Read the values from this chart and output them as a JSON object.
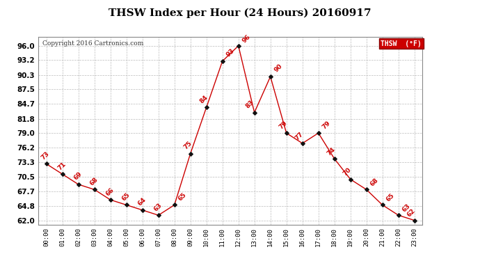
{
  "title": "THSW Index per Hour (24 Hours) 20160917",
  "copyright": "Copyright 2016 Cartronics.com",
  "legend_label": "THSW  (°F)",
  "hours": [
    0,
    1,
    2,
    3,
    4,
    5,
    6,
    7,
    8,
    9,
    10,
    11,
    12,
    13,
    14,
    15,
    16,
    17,
    18,
    19,
    20,
    21,
    22,
    23
  ],
  "values": [
    73,
    71,
    69,
    68,
    66,
    65,
    64,
    63,
    65,
    75,
    84,
    93,
    96,
    83,
    90,
    79,
    77,
    79,
    74,
    70,
    68,
    65,
    63,
    62
  ],
  "x_labels": [
    "00:00",
    "01:00",
    "02:00",
    "03:00",
    "04:00",
    "05:00",
    "06:00",
    "07:00",
    "08:00",
    "09:00",
    "10:00",
    "11:00",
    "12:00",
    "13:00",
    "14:00",
    "15:00",
    "16:00",
    "17:00",
    "18:00",
    "19:00",
    "20:00",
    "21:00",
    "22:00",
    "23:00"
  ],
  "y_ticks": [
    62.0,
    64.8,
    67.7,
    70.5,
    73.3,
    76.2,
    79.0,
    81.8,
    84.7,
    87.5,
    90.3,
    93.2,
    96.0
  ],
  "ylim": [
    61.2,
    97.8
  ],
  "line_color": "#cc0000",
  "marker_color": "#111111",
  "label_color": "#cc0000",
  "legend_bg": "#cc0000",
  "legend_fg": "#ffffff",
  "grid_color": "#bbbbbb",
  "background_color": "#ffffff",
  "title_fontsize": 11,
  "copyright_fontsize": 6.5,
  "label_fontsize": 6.5,
  "ytick_fontsize": 7.5,
  "xtick_fontsize": 6.5
}
